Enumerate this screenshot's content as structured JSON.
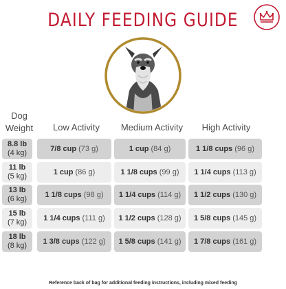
{
  "title": "DAILY FEEDING GUIDE",
  "header": {
    "dog": "Dog",
    "weight": "Weight",
    "columns": [
      "Low Activity",
      "Medium Activity",
      "High Activity"
    ]
  },
  "rows": [
    {
      "lb": "8.8 lb",
      "kg": "(4 kg)",
      "low": {
        "cups": "7/8 cup",
        "g": "(73 g)"
      },
      "medium": {
        "cups": "1 cup",
        "g": "(84 g)"
      },
      "high": {
        "cups": "1 1/8 cups",
        "g": "(96 g)"
      }
    },
    {
      "lb": "11 lb",
      "kg": "(5 kg)",
      "low": {
        "cups": "1 cup",
        "g": "(86 g)"
      },
      "medium": {
        "cups": "1 1/8 cups",
        "g": "(99 g)"
      },
      "high": {
        "cups": "1 1/4 cups",
        "g": "(113 g)"
      }
    },
    {
      "lb": "13 lb",
      "kg": "(6 kg)",
      "low": {
        "cups": "1 1/8 cups",
        "g": "(98 g)"
      },
      "medium": {
        "cups": "1 1/4 cups",
        "g": "(114 g)"
      },
      "high": {
        "cups": "1 1/2 cups",
        "g": "(130 g)"
      }
    },
    {
      "lb": "15 lb",
      "kg": "(7 kg)",
      "low": {
        "cups": "1 1/4 cups",
        "g": "(111 g)"
      },
      "medium": {
        "cups": "1 1/2 cups",
        "g": "(128 g)"
      },
      "high": {
        "cups": "1 5/8 cups",
        "g": "(145 g)"
      }
    },
    {
      "lb": "18 lb",
      "kg": "(8 kg)",
      "low": {
        "cups": "1 3/8 cups",
        "g": "(122 g)"
      },
      "medium": {
        "cups": "1 5/8 cups",
        "g": "(141 g)"
      },
      "high": {
        "cups": "1 7/8 cups",
        "g": "(161 g)"
      }
    }
  ],
  "footnote": "Reference back of bag for additional feeding instructions, including mixed feeding",
  "colors": {
    "title": "#c21a31",
    "ring": "#b08a2e",
    "dark_row": "#d2d2d2",
    "light_row": "#ededed"
  },
  "icons": {
    "logo": "crown-logo-icon",
    "photo": "schnauzer-dog-photo"
  }
}
